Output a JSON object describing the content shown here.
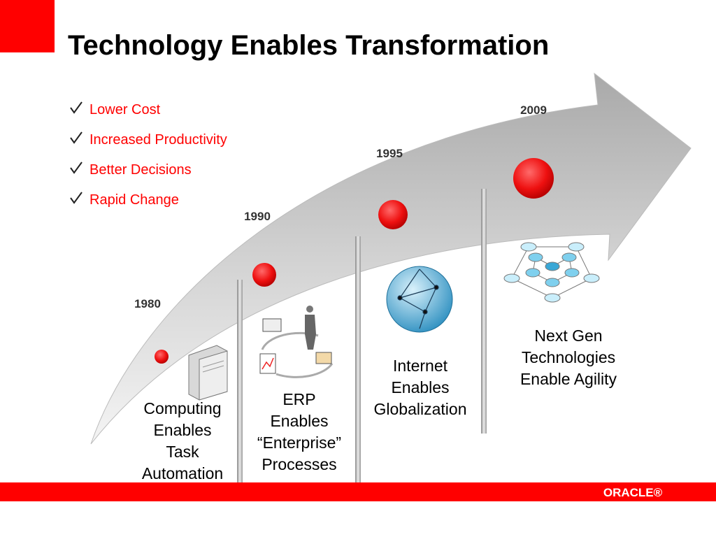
{
  "header": {
    "title": "Technology Enables Transformation"
  },
  "bullets": [
    "Lower Cost",
    "Increased Productivity",
    "Better Decisions",
    "Rapid Change"
  ],
  "milestones": [
    {
      "year": "1980",
      "label": [
        "Computing",
        "Enables",
        "Task",
        "Automation"
      ]
    },
    {
      "year": "1990",
      "label": [
        "ERP",
        "Enables",
        "“Enterprise”",
        "Processes"
      ]
    },
    {
      "year": "1995",
      "label": [
        "Internet",
        "Enables",
        "Globalization"
      ]
    },
    {
      "year": "2009",
      "label": [
        "Next Gen",
        "Technologies",
        "Enable Agility"
      ]
    }
  ],
  "footer": {
    "logo": "ORACLE®"
  }
}
